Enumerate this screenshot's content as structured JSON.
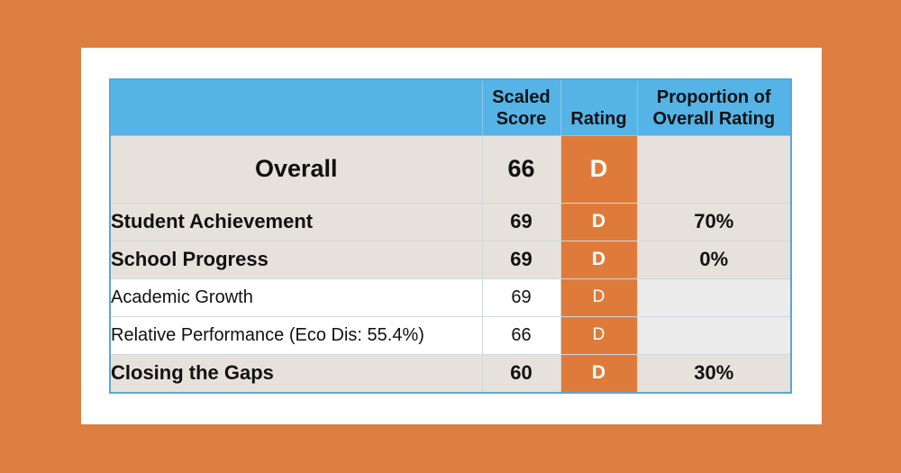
{
  "colors": {
    "background": "#dc7f40",
    "header": "#55b3e6",
    "rating_cell": "#df7b3a",
    "row_shaded": "#e7e1db"
  },
  "table": {
    "headers": {
      "category": "",
      "scaled_score": "Scaled Score",
      "rating": "Rating",
      "proportion": "Proportion of Overall Rating"
    },
    "rows": [
      {
        "name": "Overall",
        "score": "66",
        "rating": "D",
        "proportion": ""
      },
      {
        "name": "Student Achievement",
        "score": "69",
        "rating": "D",
        "proportion": "70%"
      },
      {
        "name": "School Progress",
        "score": "69",
        "rating": "D",
        "proportion": "0%"
      },
      {
        "name": "Academic Growth",
        "score": "69",
        "rating": "D",
        "proportion": ""
      },
      {
        "name": "Relative Performance (Eco Dis: 55.4%)",
        "score": "66",
        "rating": "D",
        "proportion": ""
      },
      {
        "name": "Closing the Gaps",
        "score": "60",
        "rating": "D",
        "proportion": "30%"
      }
    ]
  }
}
